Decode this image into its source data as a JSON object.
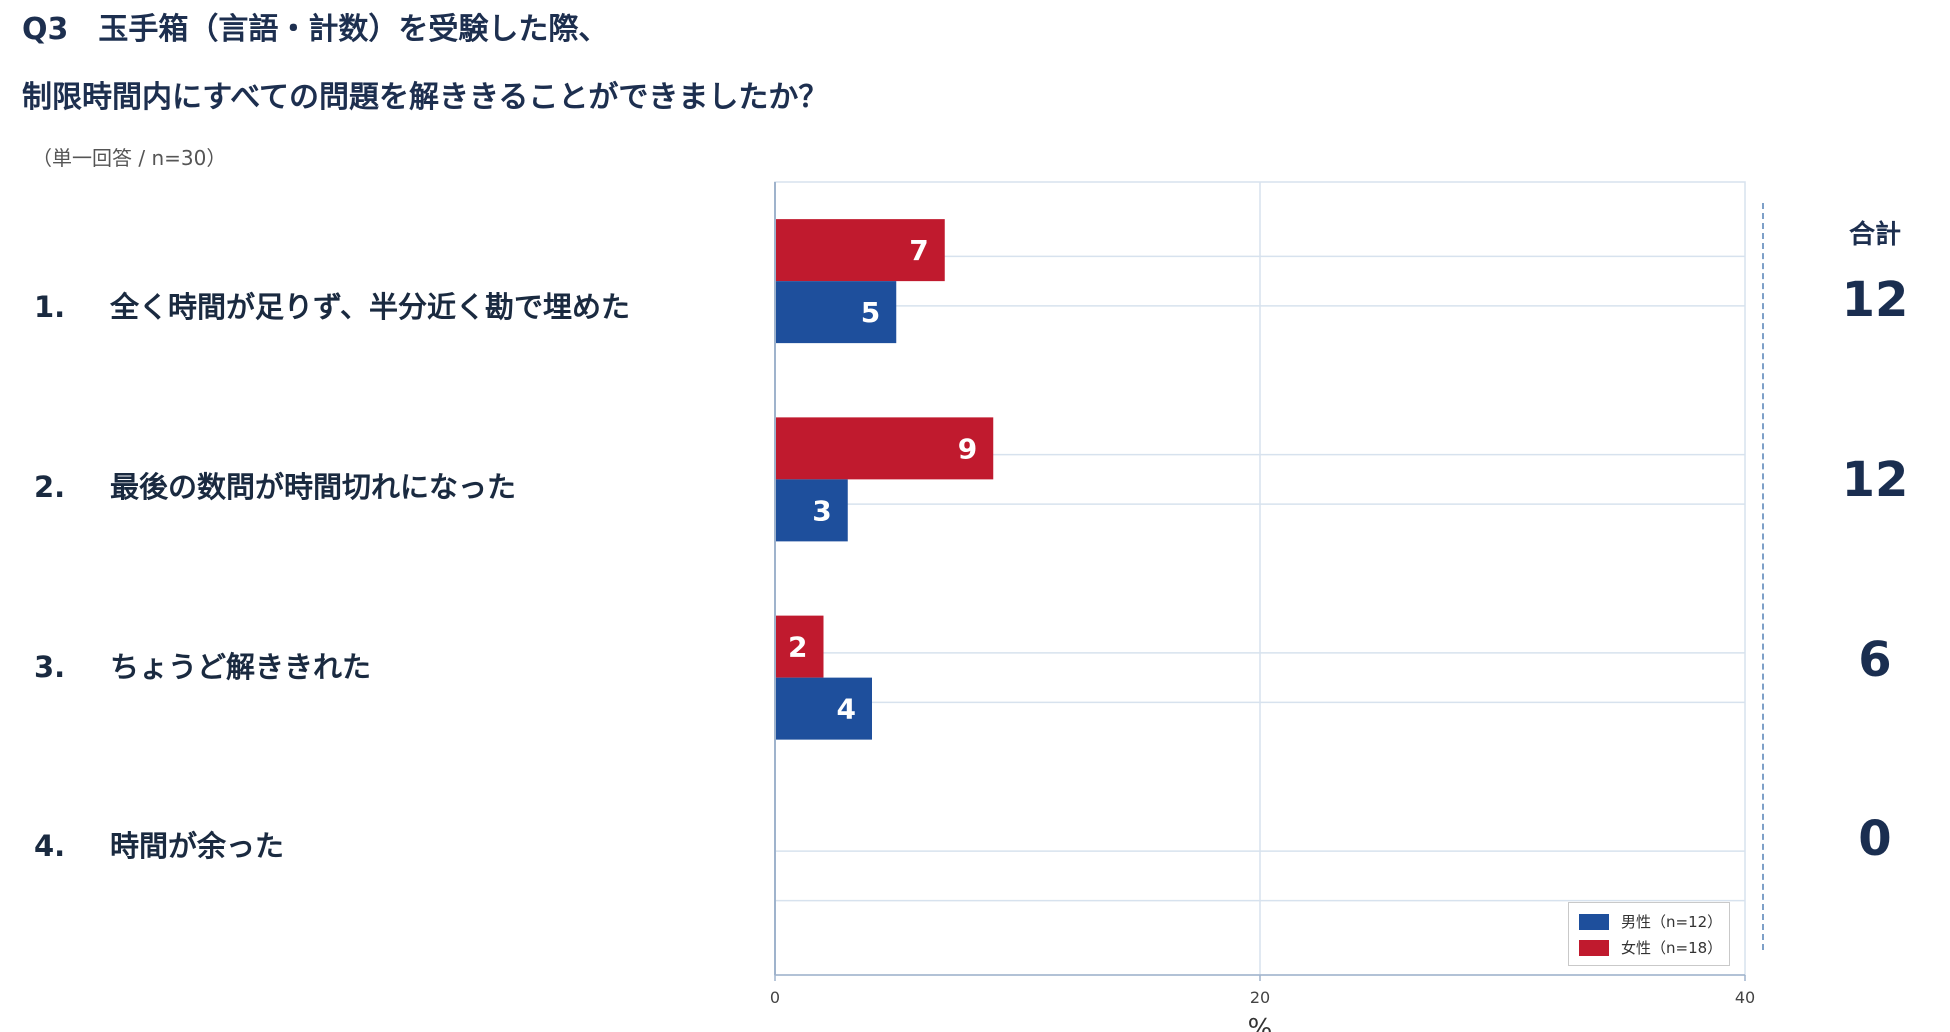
{
  "question": {
    "line1": "Q3　玉手箱（言語・計数）を受験した際、",
    "line2": "制限時間内にすべての問題を解ききることができましたか？",
    "note": "（単一回答 / n=30）"
  },
  "options": [
    {
      "num": "1.",
      "label": "全く時間が足りず、半分近く勘で埋めた",
      "total": "12"
    },
    {
      "num": "2.",
      "label": "最後の数問が時間切れになった",
      "total": "12"
    },
    {
      "num": "3.",
      "label": "ちょうど解ききれた",
      "total": "6"
    },
    {
      "num": "4.",
      "label": "時間が余った",
      "total": "0"
    }
  ],
  "total_header": "合計",
  "legend": {
    "male": "男性（n=12）",
    "female": "女性（n=18）"
  },
  "colors": {
    "male": "#1e4f9c",
    "female": "#c01a2e",
    "grid": "#d7e2ee",
    "axis": "#9fb3cc"
  },
  "chart_data": {
    "type": "bar",
    "orientation": "horizontal",
    "categories": [
      "1.",
      "2.",
      "3.",
      "4."
    ],
    "series": [
      {
        "name": "女性（n=18）",
        "values": [
          7,
          9,
          2,
          0
        ],
        "labels": [
          "7",
          "9",
          "2",
          ""
        ]
      },
      {
        "name": "男性（n=12）",
        "values": [
          5,
          3,
          4,
          0
        ],
        "labels": [
          "5",
          "3",
          "4",
          ""
        ]
      }
    ],
    "xlabel": "%",
    "xticks": [
      "0",
      "20",
      "40"
    ],
    "xlim": [
      0,
      40
    ],
    "grid": true,
    "legend_position": "bottom-right"
  }
}
